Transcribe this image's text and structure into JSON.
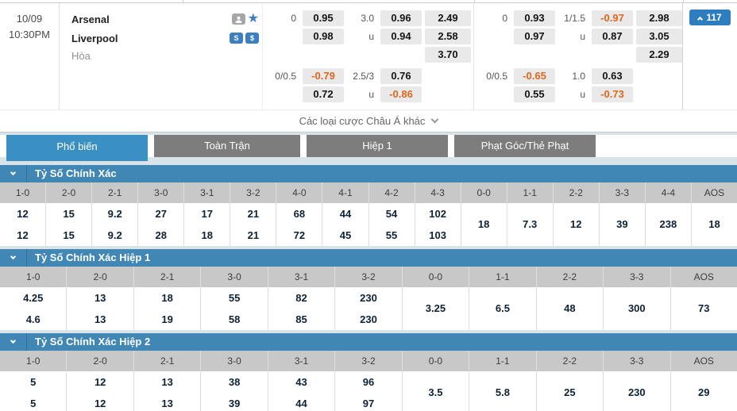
{
  "match": {
    "date": "10/09",
    "time": "10:30PM",
    "home_team": "Arsenal",
    "away_team": "Liverpool",
    "draw_label": "Hòa",
    "more_bets_label": "Các loại cược Châu Á khác",
    "pin_count": "117",
    "stats_badge": "S",
    "money_badge": "$"
  },
  "odds": {
    "under_label": "u",
    "groups": [
      {
        "rows": [
          {
            "hdp_line": "0",
            "hdp_top": "0.95",
            "hdp_bot": "0.98",
            "ou_line": "3.0",
            "ou_top": "0.96",
            "ou_bot": "0.94",
            "x12_1": "2.49",
            "x12_2": "2.58",
            "x12_3": "3.70"
          },
          {
            "hdp_line": "0/0.5",
            "hdp_top": "-0.79",
            "hdp_bot": "0.72",
            "ou_line": "2.5/3",
            "ou_top": "0.76",
            "ou_bot": "-0.86"
          }
        ]
      },
      {
        "rows": [
          {
            "hdp_line": "0",
            "hdp_top": "0.93",
            "hdp_bot": "0.97",
            "ou_line": "1/1.5",
            "ou_top": "-0.97",
            "ou_bot": "0.87",
            "x12_1": "2.98",
            "x12_2": "3.05",
            "x12_3": "2.29"
          },
          {
            "hdp_line": "0/0.5",
            "hdp_top": "-0.65",
            "hdp_bot": "0.55",
            "ou_line": "1.0",
            "ou_top": "0.63",
            "ou_bot": "-0.73"
          }
        ]
      }
    ]
  },
  "tabs": [
    {
      "label": "Phổ biến",
      "active": true
    },
    {
      "label": "Toàn Trận",
      "active": false
    },
    {
      "label": "Hiệp 1",
      "active": false
    },
    {
      "label": "Phạt Góc/Thẻ Phạt",
      "active": false
    }
  ],
  "sections": [
    {
      "title": "Tỷ Số Chính Xác",
      "columns": [
        "1-0",
        "2-0",
        "2-1",
        "3-0",
        "3-1",
        "3-2",
        "4-0",
        "4-1",
        "4-2",
        "4-3",
        "0-0",
        "1-1",
        "2-2",
        "3-3",
        "4-4",
        "AOS"
      ],
      "row1": [
        "12",
        "15",
        "9.2",
        "27",
        "17",
        "21",
        "68",
        "44",
        "54",
        "102"
      ],
      "row2": [
        "12",
        "15",
        "9.2",
        "28",
        "18",
        "21",
        "72",
        "45",
        "55",
        "103"
      ],
      "singles": [
        "18",
        "7.3",
        "12",
        "39",
        "238",
        "18"
      ]
    },
    {
      "title": "Tỷ Số Chính Xác Hiệp 1",
      "columns": [
        "1-0",
        "2-0",
        "2-1",
        "3-0",
        "3-1",
        "3-2",
        "0-0",
        "1-1",
        "2-2",
        "3-3",
        "AOS"
      ],
      "row1": [
        "4.25",
        "13",
        "18",
        "55",
        "82",
        "230"
      ],
      "row2": [
        "4.6",
        "13",
        "19",
        "58",
        "85",
        "230"
      ],
      "singles": [
        "3.25",
        "6.5",
        "48",
        "300",
        "73"
      ]
    },
    {
      "title": "Tỷ Số Chính Xác Hiệp 2",
      "columns": [
        "1-0",
        "2-0",
        "2-1",
        "3-0",
        "3-1",
        "3-2",
        "0-0",
        "1-1",
        "2-2",
        "3-3",
        "AOS"
      ],
      "row1": [
        "5",
        "12",
        "13",
        "38",
        "43",
        "96"
      ],
      "row2": [
        "5",
        "12",
        "13",
        "39",
        "44",
        "97"
      ],
      "singles": [
        "3.5",
        "5.8",
        "25",
        "230",
        "29"
      ]
    }
  ],
  "colors": {
    "accent_blue": "#3a90c2",
    "section_blue": "#4187b5",
    "tab_gray": "#7d7d7d",
    "odds_box": "#e9e9e9",
    "negative_odds": "#e0661e",
    "header_gray": "#c8c8c8"
  }
}
